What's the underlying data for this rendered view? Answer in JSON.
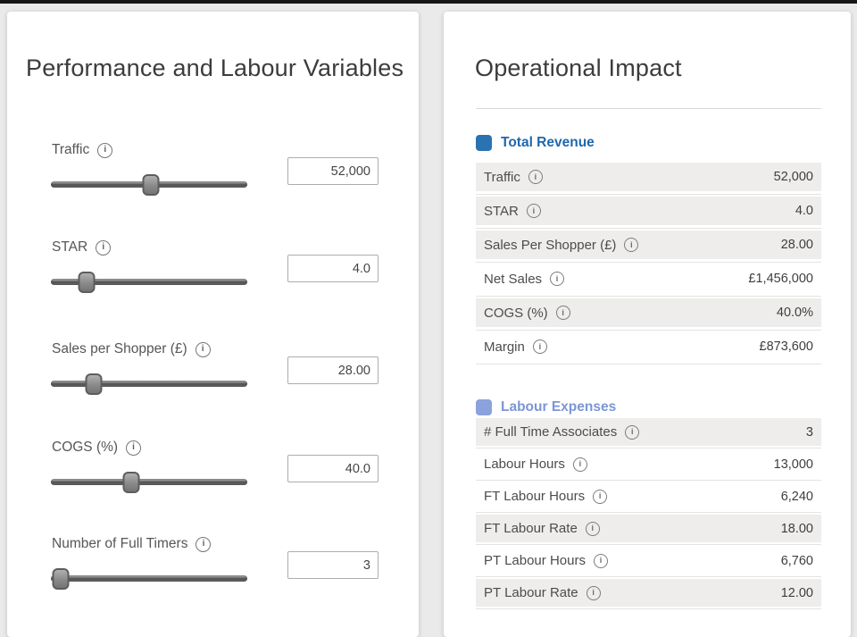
{
  "left_panel": {
    "title": "Performance and Labour Variables",
    "sliders": [
      {
        "label": "Traffic",
        "value": "52,000",
        "thumb_pct": 51
      },
      {
        "label": "STAR",
        "value": "4.0",
        "thumb_pct": 18
      },
      {
        "label": "Sales per Shopper (£)",
        "value": "28.00",
        "thumb_pct": 22
      },
      {
        "label": "COGS (%)",
        "value": "40.0",
        "thumb_pct": 41
      },
      {
        "label": "Number of Full Timers",
        "value": "3",
        "thumb_pct": 5
      }
    ]
  },
  "right_panel": {
    "title": "Operational Impact",
    "sections": [
      {
        "legend": "Total Revenue",
        "legend_color": "#2A72B0",
        "legend_text_color": "#1F67AD",
        "rows": [
          {
            "label": "Traffic",
            "value": "52,000",
            "shaded": true
          },
          {
            "label": "STAR",
            "value": "4.0",
            "shaded": true
          },
          {
            "label": "Sales Per Shopper (£)",
            "value": "28.00",
            "shaded": true
          },
          {
            "label": "Net Sales",
            "value": "£1,456,000",
            "shaded": false
          },
          {
            "label": "COGS (%)",
            "value": "40.0%",
            "shaded": true
          },
          {
            "label": "Margin",
            "value": "£873,600",
            "shaded": false
          }
        ]
      },
      {
        "legend": "Labour Expenses",
        "legend_color": "#8BA2DC",
        "legend_text_color": "#7B95D6",
        "rows": [
          {
            "label": "# Full Time Associates",
            "value": "3",
            "shaded": true
          },
          {
            "label": "Labour Hours",
            "value": "13,000",
            "shaded": false
          },
          {
            "label": "FT Labour Hours",
            "value": "6,240",
            "shaded": false
          },
          {
            "label": "FT Labour Rate",
            "value": "18.00",
            "shaded": true
          },
          {
            "label": "PT Labour Hours",
            "value": "6,760",
            "shaded": false
          },
          {
            "label": "PT Labour Rate",
            "value": "12.00",
            "shaded": true
          }
        ]
      }
    ]
  },
  "icons": {
    "info": "i"
  }
}
